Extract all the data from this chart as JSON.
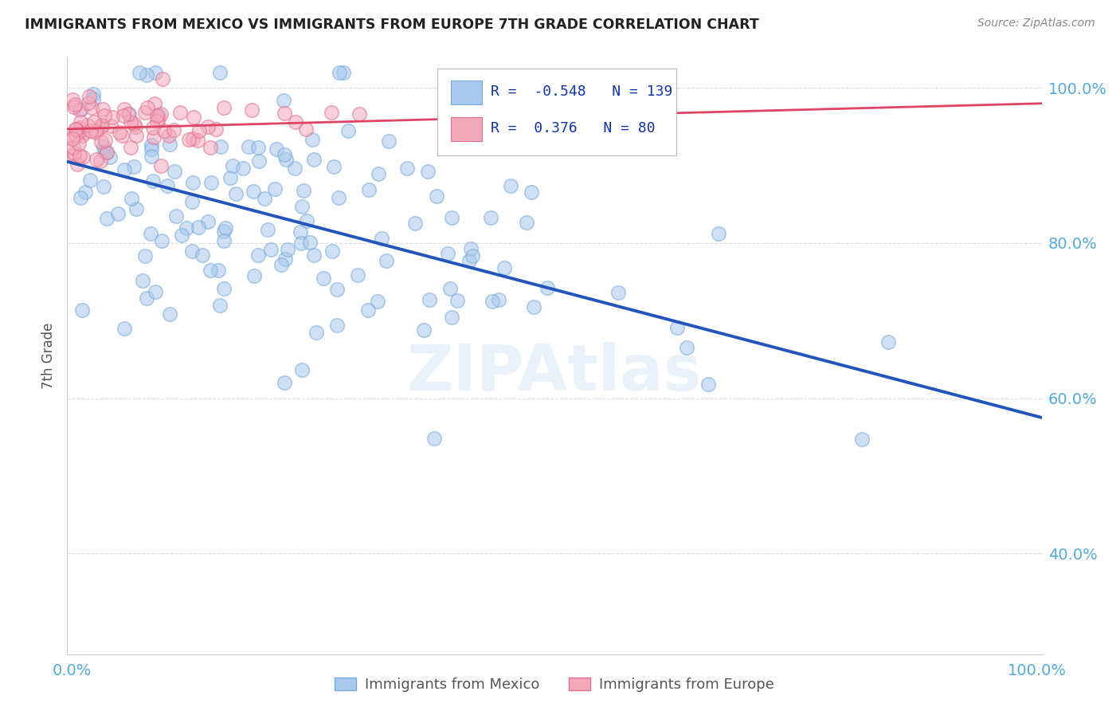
{
  "title": "IMMIGRANTS FROM MEXICO VS IMMIGRANTS FROM EUROPE 7TH GRADE CORRELATION CHART",
  "source": "Source: ZipAtlas.com",
  "ylabel": "7th Grade",
  "mexico_R": -0.548,
  "mexico_N": 139,
  "europe_R": 0.376,
  "europe_N": 80,
  "mexico_color": "#A8C8EE",
  "europe_color": "#F4A8BC",
  "mexico_line_color": "#2255BB",
  "europe_line_color": "#DD4466",
  "mexico_edge_color": "#7AAAD8",
  "europe_edge_color": "#E07090",
  "legend_label_mexico": "Immigrants from Mexico",
  "legend_label_europe": "Immigrants from Europe",
  "title_color": "#222222",
  "source_color": "#888888",
  "axis_label_color": "#55AADD",
  "watermark": "ZIPAtlas",
  "bg_color": "#FFFFFF",
  "grid_color": "#DDDDDD",
  "yticks": [
    0.4,
    0.6,
    0.8,
    1.0
  ],
  "ytick_labels": [
    "40.0%",
    "60.0%",
    "80.0%",
    "100.0%"
  ],
  "ymin": 0.27,
  "ymax": 1.04,
  "xmin": -0.005,
  "xmax": 1.005,
  "mex_line_x0": 0.0,
  "mex_line_y0": 0.905,
  "mex_line_x1": 1.0,
  "mex_line_y1": 0.575,
  "eur_line_x0": 0.0,
  "eur_line_y0": 0.947,
  "eur_line_x1": 1.0,
  "eur_line_y1": 0.98
}
